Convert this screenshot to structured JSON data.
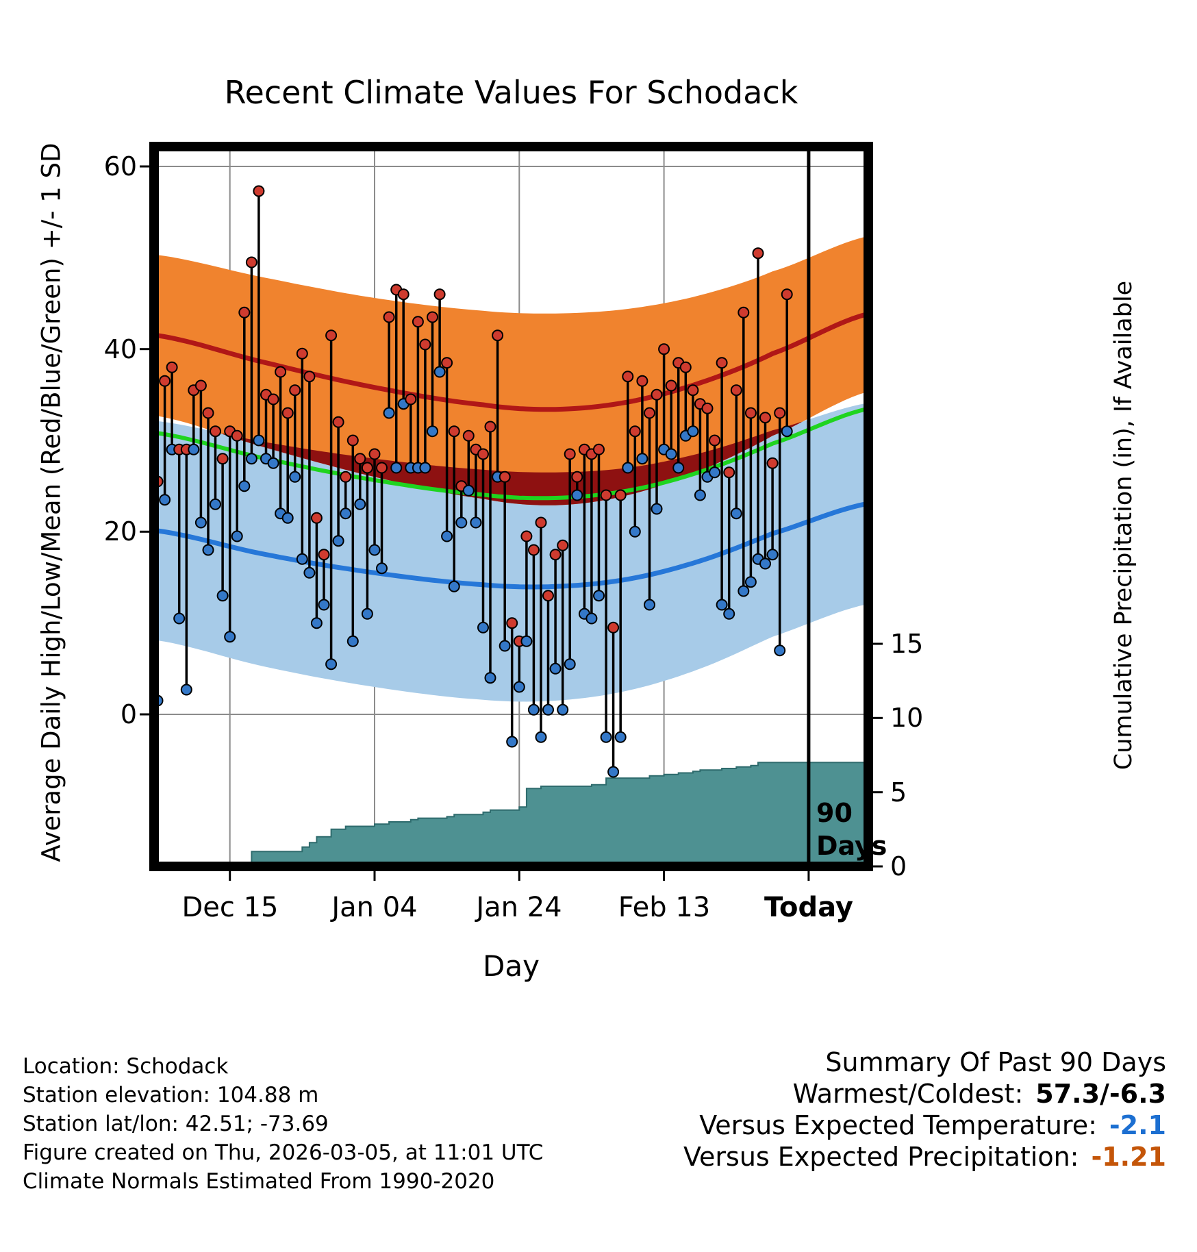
{
  "title": "Recent Climate Values For Schodack",
  "axes": {
    "left_label": "Average Daily High/Low/Mean (Red/Blue/Green) +/- 1 SD",
    "right_label": "Cumulative Precipitation (in), If Available",
    "x_label": "Day",
    "left_ticks": [
      60,
      40,
      20,
      0
    ],
    "right_ticks": [
      15,
      10,
      5,
      0
    ],
    "x_ticks": [
      "Dec 15",
      "Jan 04",
      "Jan 24",
      "Feb 13",
      "Today"
    ],
    "x_tick_days": [
      10,
      30,
      50,
      70,
      90
    ]
  },
  "ninety_day_marker": {
    "line1": "90",
    "line2": "Days"
  },
  "footer": {
    "lines": [
      "Location: Schodack",
      "Station elevation: 104.88 m",
      "Station lat/lon: 42.51; -73.69",
      "Figure created on Thu, 2026-03-05, at 11:01 UTC",
      "Climate Normals Estimated From 1990-2020"
    ]
  },
  "summary": {
    "title": "Summary Of Past 90 Days",
    "rows": [
      {
        "label": "Warmest/Coldest:",
        "value": "57.3/-6.3",
        "color": "#000000"
      },
      {
        "label": "Versus Expected Temperature:",
        "value": "-2.1",
        "color": "#1c6fd1"
      },
      {
        "label": "Versus Expected Precipitation:",
        "value": "-1.21",
        "color": "#c45508"
      }
    ]
  },
  "colors": {
    "high_band": "#f0832e",
    "high_line": "#b01717",
    "overlap_band": "#8e1111",
    "low_band": "#a7cbe8",
    "low_line": "#2677d8",
    "mean_line": "#1fd41f",
    "precip_fill": "#4e9192",
    "precip_edge": "#2e6b6d",
    "high_dot": "#cf3b2f",
    "low_dot": "#3478c8",
    "stem": "#000000",
    "grid": "#8c8c8c",
    "border": "#000000"
  },
  "chart_data": {
    "type": "composite",
    "x_domain_days": [
      -1,
      99
    ],
    "today_day": 90,
    "temp_axis_ticks": [
      0,
      20,
      40,
      60
    ],
    "precip_axis_ticks": [
      0,
      5,
      10,
      15
    ],
    "series": [
      {
        "name": "Daily High",
        "style": "point-stem",
        "color_key": "high_dot"
      },
      {
        "name": "Daily Low",
        "style": "point-stem",
        "color_key": "low_dot"
      },
      {
        "name": "Climatological High +/- 1 SD",
        "style": "band",
        "color_key": "high_band"
      },
      {
        "name": "Climatological Low +/- 1 SD",
        "style": "band",
        "color_key": "low_band"
      },
      {
        "name": "High/Low Band Overlap",
        "style": "band",
        "color_key": "overlap_band"
      },
      {
        "name": "Climatological Mean",
        "style": "line",
        "color_key": "mean_line"
      },
      {
        "name": "Cumulative Precipitation",
        "style": "step-area",
        "color_key": "precip_fill"
      }
    ],
    "climatology": {
      "days": [
        -1,
        15,
        30,
        45,
        55,
        65,
        75,
        85,
        99
      ],
      "high_mean": [
        41.6,
        38.5,
        35.8,
        33.9,
        33.4,
        34.2,
        36.3,
        39.5,
        44.0
      ],
      "high_sd": [
        8.8,
        9.3,
        9.8,
        10.3,
        10.5,
        10.2,
        9.6,
        9.0,
        8.5
      ],
      "low_mean": [
        20.2,
        17.5,
        15.5,
        14.2,
        14.0,
        14.8,
        16.8,
        19.8,
        23.2
      ],
      "low_sd": [
        12.0,
        12.3,
        12.5,
        12.6,
        12.5,
        12.2,
        11.8,
        11.3,
        11.0
      ]
    },
    "daily_start_day": 0,
    "daily_high_low": [
      [
        25.5,
        1.5
      ],
      [
        36.5,
        23.5
      ],
      [
        38,
        29
      ],
      [
        29,
        10.5
      ],
      [
        29,
        2.7
      ],
      [
        35.5,
        29
      ],
      [
        36,
        21
      ],
      [
        33,
        18
      ],
      [
        31,
        23
      ],
      [
        28,
        13
      ],
      [
        31,
        8.5
      ],
      [
        30.5,
        19.5
      ],
      [
        44,
        25
      ],
      [
        49.5,
        28
      ],
      [
        57.3,
        30
      ],
      [
        35,
        28
      ],
      [
        34.5,
        27.5
      ],
      [
        37.5,
        22
      ],
      [
        33,
        21.5
      ],
      [
        35.5,
        26
      ],
      [
        39.5,
        17
      ],
      [
        37,
        15.5
      ],
      [
        21.5,
        10
      ],
      [
        17.5,
        12
      ],
      [
        41.5,
        5.5
      ],
      [
        32,
        19
      ],
      [
        26,
        22
      ],
      [
        30,
        8
      ],
      [
        28,
        23
      ],
      [
        27,
        11
      ],
      [
        28.5,
        18
      ],
      [
        27,
        16
      ],
      [
        43.5,
        33
      ],
      [
        46.5,
        27
      ],
      [
        46,
        34
      ],
      [
        34.5,
        27
      ],
      [
        43,
        27
      ],
      [
        40.5,
        27
      ],
      [
        43.5,
        31
      ],
      [
        46,
        37.5
      ],
      [
        38.5,
        19.5
      ],
      [
        31,
        14
      ],
      [
        25,
        21
      ],
      [
        30.5,
        24.5
      ],
      [
        29,
        21
      ],
      [
        28.5,
        9.5
      ],
      [
        31.5,
        4
      ],
      [
        41.5,
        26
      ],
      [
        26,
        7.5
      ],
      [
        10,
        -3
      ],
      [
        8,
        3
      ],
      [
        19.5,
        8
      ],
      [
        18,
        0.5
      ],
      [
        21,
        -2.5
      ],
      [
        13,
        0.5
      ],
      [
        17.5,
        5
      ],
      [
        18.5,
        0.5
      ],
      [
        28.5,
        5.5
      ],
      [
        26,
        24
      ],
      [
        29,
        11
      ],
      [
        28.5,
        10.5
      ],
      [
        29,
        13
      ],
      [
        24,
        -2.5
      ],
      [
        9.5,
        -6.3
      ],
      [
        24,
        -2.5
      ],
      [
        37,
        27
      ],
      [
        31,
        20
      ],
      [
        36.5,
        28
      ],
      [
        33,
        12
      ],
      [
        35,
        22.5
      ],
      [
        40,
        29
      ],
      [
        36,
        28.5
      ],
      [
        38.5,
        27
      ],
      [
        38,
        30.5
      ],
      [
        35.5,
        31
      ],
      [
        34,
        24
      ],
      [
        33.5,
        26
      ],
      [
        30,
        26.5
      ],
      [
        38.5,
        12
      ],
      [
        26.5,
        11
      ],
      [
        35.5,
        22
      ],
      [
        44,
        13.5
      ],
      [
        33,
        14.5
      ],
      [
        50.5,
        17
      ],
      [
        32.5,
        16.5
      ],
      [
        27.5,
        17.5
      ],
      [
        33,
        7
      ],
      [
        46,
        31
      ]
    ],
    "precip_cumulative_steps": [
      [
        13,
        1.0
      ],
      [
        20,
        1.3
      ],
      [
        21,
        1.6
      ],
      [
        22,
        2.0
      ],
      [
        24,
        2.5
      ],
      [
        26,
        2.7
      ],
      [
        30,
        2.85
      ],
      [
        32,
        3.0
      ],
      [
        35,
        3.15
      ],
      [
        36,
        3.25
      ],
      [
        40,
        3.35
      ],
      [
        41,
        3.5
      ],
      [
        45,
        3.65
      ],
      [
        46,
        3.8
      ],
      [
        50,
        4.0
      ],
      [
        51,
        5.25
      ],
      [
        53,
        5.4
      ],
      [
        60,
        5.5
      ],
      [
        62,
        5.95
      ],
      [
        68,
        6.1
      ],
      [
        70,
        6.2
      ],
      [
        72,
        6.3
      ],
      [
        74,
        6.4
      ],
      [
        75,
        6.5
      ],
      [
        78,
        6.6
      ],
      [
        80,
        6.7
      ],
      [
        82,
        6.8
      ],
      [
        83,
        7.0
      ],
      [
        98,
        7.0
      ]
    ]
  }
}
